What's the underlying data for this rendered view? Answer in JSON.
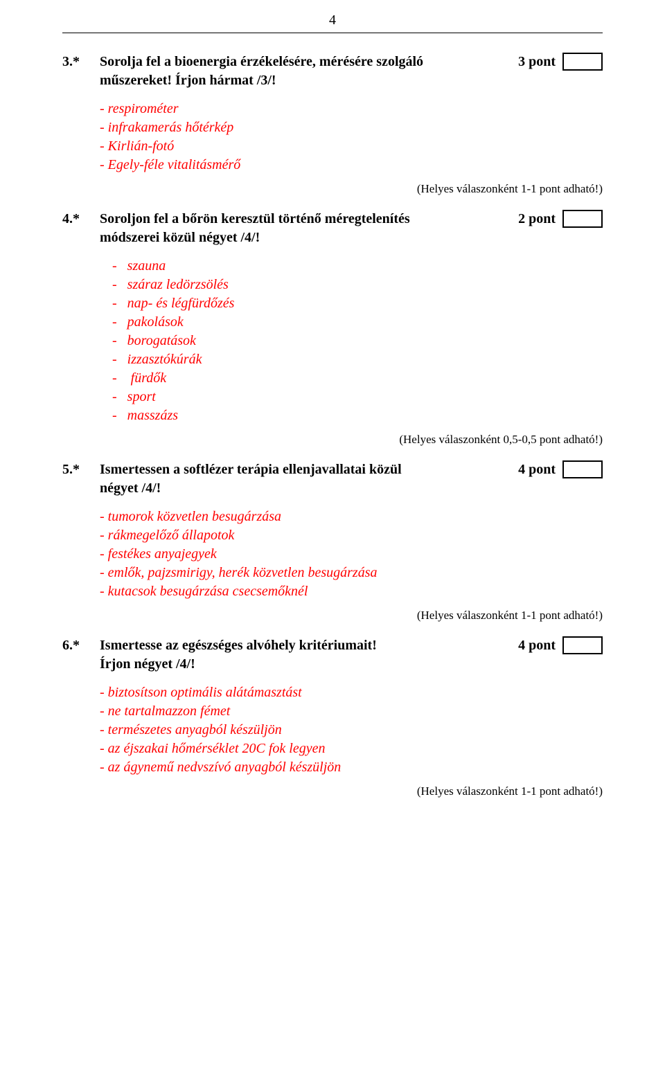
{
  "page_number": "4",
  "colors": {
    "answer": "#ff0000",
    "text": "#000000",
    "bg": "#ffffff"
  },
  "note_text": "(Helyes válaszonként 1-1 pont adható!)",
  "note_text_half": "(Helyes válaszonként 0,5-0,5 pont adható!)",
  "q3": {
    "num": "3.*",
    "title_l1": "Sorolja fel a bioenergia érzékelésére, mérésére szolgáló",
    "title_l2": "műszereket! Írjon hármat /3/!",
    "points": "3 pont",
    "answers": [
      "respirométer",
      "infrakamerás hőtérkép",
      "Kirlián-fotó",
      "Egely-féle vitalitásmérő"
    ]
  },
  "q4": {
    "num": "4.*",
    "title_l1": "Soroljon fel a bőrön keresztül történő méregtelenítés",
    "title_l2": "módszerei közül négyet /4/!",
    "points": "2 pont",
    "answers": [
      "szauna",
      "száraz ledörzsölés",
      "nap- és légfürdőzés",
      "pakolások",
      "borogatások",
      "izzasztókúrák",
      " fürdők",
      "sport",
      "masszázs"
    ]
  },
  "q5": {
    "num": "5.*",
    "title_l1": "Ismertessen a softlézer terápia ellenjavallatai közül",
    "title_l2": "négyet /4/!",
    "points": "4 pont",
    "answers": [
      "tumorok közvetlen besugárzása",
      "rákmegelőző állapotok",
      "festékes anyajegyek",
      "emlők, pajzsmirigy, herék közvetlen besugárzása",
      "kutacsok besugárzása csecsemőknél"
    ]
  },
  "q6": {
    "num": "6.*",
    "title_l1": "Ismertesse az egészséges alvóhely kritériumait!",
    "title_l2": "Írjon négyet /4/!",
    "points": "4 pont",
    "answers": [
      "biztosítson optimális alátámasztást",
      "ne tartalmazzon fémet",
      "természetes anyagból készüljön",
      "az éjszakai hőmérséklet 20C fok legyen",
      "az ágynemű nedvszívó anyagból készüljön"
    ]
  }
}
